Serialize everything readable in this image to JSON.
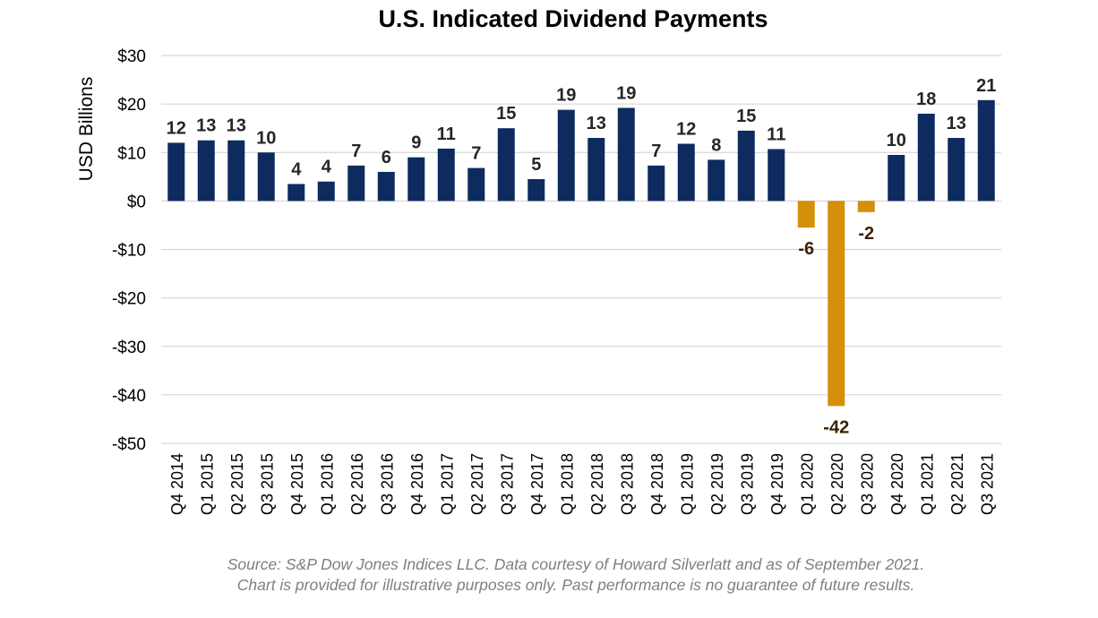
{
  "chart_data": {
    "type": "bar",
    "title": "U.S. Indicated Dividend Payments",
    "ylabel": "USD Billions",
    "xlabel": "",
    "ylim": [
      -50,
      30
    ],
    "yticks": [
      30,
      20,
      10,
      0,
      -10,
      -20,
      -30,
      -40,
      -50
    ],
    "ytick_labels": [
      "$30",
      "$20",
      "$10",
      "$0",
      "-$10",
      "-$20",
      "-$30",
      "-$40",
      "-$50"
    ],
    "grid": true,
    "categories": [
      "Q4 2014",
      "Q1 2015",
      "Q2 2015",
      "Q3 2015",
      "Q4 2015",
      "Q1 2016",
      "Q2 2016",
      "Q3 2016",
      "Q4 2016",
      "Q1 2017",
      "Q2 2017",
      "Q3 2017",
      "Q4 2017",
      "Q1 2018",
      "Q2 2018",
      "Q3 2018",
      "Q4 2018",
      "Q1 2019",
      "Q2 2019",
      "Q3 2019",
      "Q4 2019",
      "Q1 2020",
      "Q2 2020",
      "Q3 2020",
      "Q4 2020",
      "Q1 2021",
      "Q2 2021",
      "Q3 2021"
    ],
    "values": [
      12,
      12.5,
      12.5,
      10,
      3.5,
      4,
      7.3,
      6,
      9,
      10.8,
      6.8,
      15,
      4.5,
      18.8,
      13,
      19.2,
      7.3,
      11.8,
      8.5,
      14.5,
      10.7,
      -5.5,
      -42.3,
      -2.3,
      9.5,
      18,
      13,
      20.8
    ],
    "data_labels": [
      "12",
      "13",
      "13",
      "10",
      "4",
      "4",
      "7",
      "6",
      "9",
      "11",
      "7",
      "15",
      "5",
      "19",
      "13",
      "19",
      "7",
      "12",
      "8",
      "15",
      "11",
      "-6",
      "-42",
      "-2",
      "10",
      "18",
      "13",
      "21"
    ],
    "colors": {
      "positive": "#0d2b5e",
      "negative": "#d4900a",
      "grid": "#d0d0d0"
    },
    "source_lines": [
      "Source: S&P Dow Jones Indices LLC.  Data courtesy of Howard Silverlatt and as of September 2021.",
      "Chart is provided for illustrative purposes only. Past performance is no guarantee of future results."
    ]
  }
}
